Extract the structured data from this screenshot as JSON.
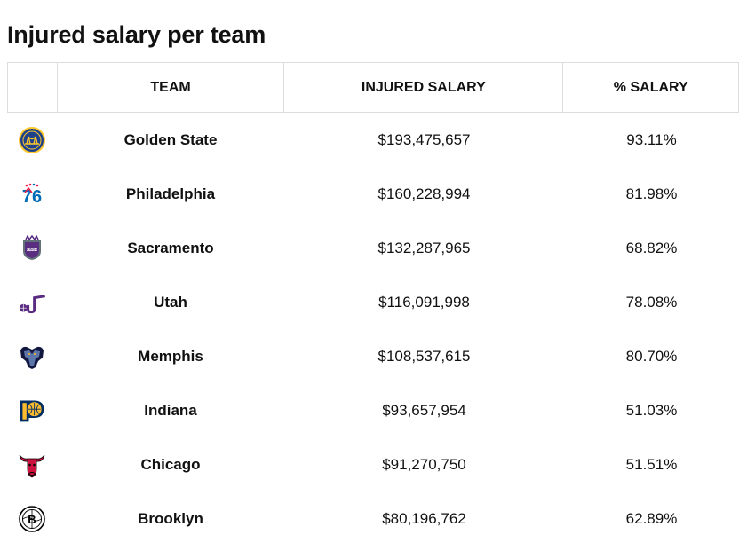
{
  "title": "Injured salary per team",
  "columns": {
    "logo": "",
    "team": "TEAM",
    "salary": "INJURED SALARY",
    "pct": "% SALARY"
  },
  "rows": [
    {
      "team": "Golden State",
      "salary": "$193,475,657",
      "pct": "93.11%",
      "icon": "golden-state-logo-icon"
    },
    {
      "team": "Philadelphia",
      "salary": "$160,228,994",
      "pct": "81.98%",
      "icon": "philadelphia-logo-icon"
    },
    {
      "team": "Sacramento",
      "salary": "$132,287,965",
      "pct": "68.82%",
      "icon": "sacramento-logo-icon"
    },
    {
      "team": "Utah",
      "salary": "$116,091,998",
      "pct": "78.08%",
      "icon": "utah-logo-icon"
    },
    {
      "team": "Memphis",
      "salary": "$108,537,615",
      "pct": "80.70%",
      "icon": "memphis-logo-icon"
    },
    {
      "team": "Indiana",
      "salary": "$93,657,954",
      "pct": "51.03%",
      "icon": "indiana-logo-icon"
    },
    {
      "team": "Chicago",
      "salary": "$91,270,750",
      "pct": "51.51%",
      "icon": "chicago-logo-icon"
    },
    {
      "team": "Brooklyn",
      "salary": "$80,196,762",
      "pct": "62.89%",
      "icon": "brooklyn-logo-icon"
    }
  ],
  "colors": {
    "golden_state": [
      "#1D428A",
      "#FFC72C"
    ],
    "philadelphia": [
      "#006BB6",
      "#ED174C"
    ],
    "sacramento": [
      "#5A2D81",
      "#63727A"
    ],
    "utah": [
      "#5B2B82",
      "#3C1361"
    ],
    "memphis": [
      "#12173F",
      "#5D76A9"
    ],
    "indiana": [
      "#002D62",
      "#FDBB30"
    ],
    "chicago": [
      "#CE1141",
      "#000000"
    ],
    "brooklyn": [
      "#000000",
      "#FFFFFF"
    ]
  }
}
